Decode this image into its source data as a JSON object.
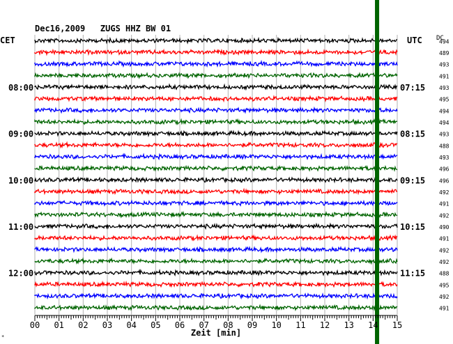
{
  "chart_data": {
    "type": "line",
    "title": "Dec16,2009   ZUGS HHZ BW 01",
    "xlabel": "Zeit [min]",
    "left_axis_title": "CET",
    "right_axis_title": "UTC",
    "dc_header": "DC",
    "xlim": [
      0,
      15
    ],
    "x_ticks": [
      "00",
      "01",
      "02",
      "03",
      "04",
      "05",
      "06",
      "07",
      "08",
      "09",
      "10",
      "11",
      "12",
      "13",
      "14",
      "15"
    ],
    "cet_labels": [
      {
        "trace": 4,
        "label": "08:00"
      },
      {
        "trace": 8,
        "label": "09:00"
      },
      {
        "trace": 12,
        "label": "10:00"
      },
      {
        "trace": 16,
        "label": "11:00"
      },
      {
        "trace": 20,
        "label": "12:00"
      }
    ],
    "utc_labels": [
      {
        "trace": 4,
        "label": "07:15"
      },
      {
        "trace": 8,
        "label": "08:15"
      },
      {
        "trace": 12,
        "label": "09:15"
      },
      {
        "trace": 16,
        "label": "10:15"
      },
      {
        "trace": 20,
        "label": "11:15"
      }
    ],
    "dc_values": [
      "494",
      "489",
      "493",
      "491",
      "493",
      "495",
      "494",
      "494",
      "493",
      "488",
      "493",
      "496",
      "496",
      "492",
      "491",
      "492",
      "490",
      "491",
      "492",
      "492",
      "488",
      "495",
      "492",
      "491"
    ],
    "trace_colors": [
      "#000000",
      "#ff0000",
      "#0000ff",
      "#006400"
    ],
    "event_marker": {
      "minute": 14.15,
      "color": "#006400"
    }
  }
}
